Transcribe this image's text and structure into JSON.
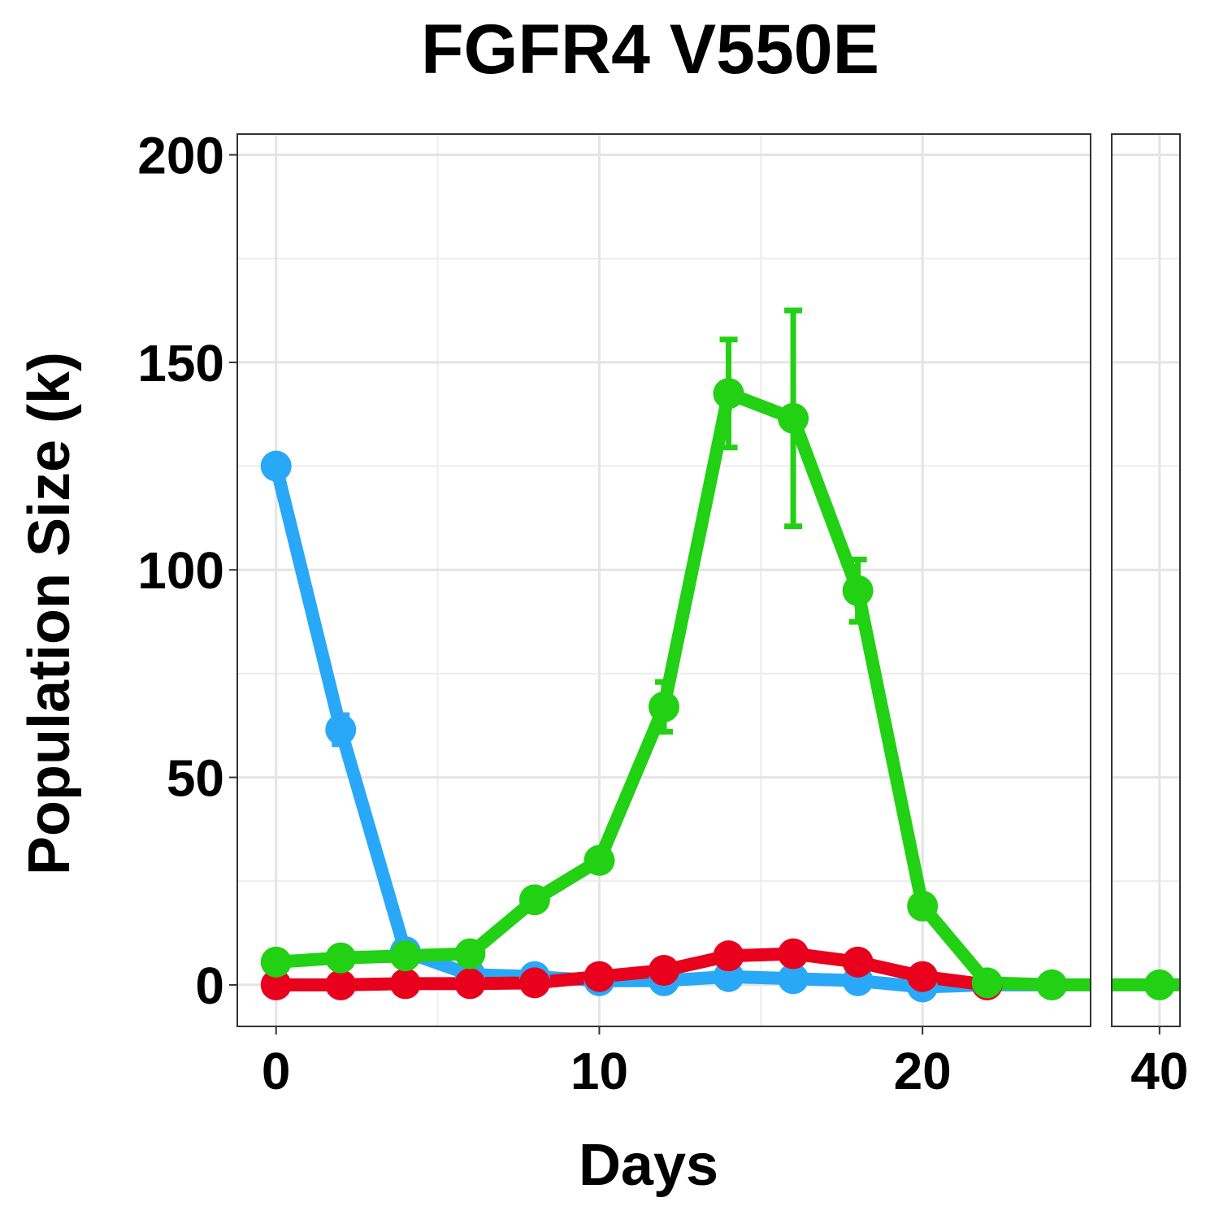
{
  "chart_data": {
    "type": "line",
    "title": "FGFR4 V550E",
    "xlabel": "Days",
    "ylabel": "Population Size (k)",
    "ylim": [
      -10,
      205
    ],
    "y_ticks": [
      "0",
      "50",
      "100",
      "150",
      "200"
    ],
    "panels": [
      {
        "xlim": [
          -1.2,
          25.2
        ],
        "x_ticks": [
          {
            "value": 0,
            "label": "0"
          },
          {
            "value": 10,
            "label": "10"
          },
          {
            "value": 20,
            "label": "20"
          }
        ]
      },
      {
        "xlim": [
          37.2,
          41.2
        ],
        "x_ticks": [
          {
            "value": 40,
            "label": "40"
          }
        ]
      }
    ],
    "grid": true,
    "legend": "none",
    "series": [
      {
        "color": "#2aa8f8",
        "x": [
          0,
          2,
          4,
          6,
          8,
          10,
          12,
          14,
          16,
          18,
          20,
          22,
          24
        ],
        "y": [
          125,
          61.5,
          8,
          2.5,
          2,
          1,
          1,
          2,
          1.5,
          1,
          -0.5,
          0,
          0
        ],
        "err": [
          0,
          3.5,
          0,
          0,
          0,
          0,
          0,
          0,
          0,
          0,
          0,
          0,
          0
        ]
      },
      {
        "color": "#e8001c",
        "x": [
          0,
          2,
          4,
          6,
          8,
          10,
          12,
          14,
          16,
          18,
          20,
          22
        ],
        "y": [
          0,
          0,
          0.3,
          0.3,
          0.5,
          2,
          3.5,
          7,
          7.5,
          5.5,
          2,
          0
        ],
        "err": [
          0,
          0,
          0,
          0,
          0,
          0,
          0,
          0,
          0,
          0,
          0,
          0
        ]
      },
      {
        "color": "#22d014",
        "x": [
          0,
          2,
          4,
          6,
          8,
          10,
          12,
          14,
          16,
          18,
          20,
          22,
          24,
          25.2,
          37.2,
          40,
          41.2
        ],
        "y": [
          5.5,
          6.5,
          7,
          7.5,
          20.5,
          30,
          67,
          142.5,
          136.5,
          95,
          19,
          0.5,
          0,
          0,
          0,
          0,
          0
        ],
        "err": [
          0,
          0,
          0,
          0,
          0,
          0,
          6,
          13,
          26,
          7.5,
          0,
          0,
          0,
          0,
          0,
          0,
          0
        ],
        "show_point": [
          true,
          true,
          true,
          true,
          true,
          true,
          true,
          true,
          true,
          true,
          true,
          true,
          true,
          false,
          false,
          true,
          false
        ]
      }
    ]
  }
}
